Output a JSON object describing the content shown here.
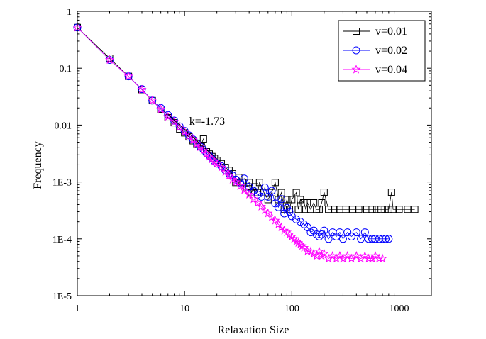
{
  "chart_data": {
    "type": "scatter",
    "title": "",
    "xlabel": "Relaxation Size",
    "ylabel": "Frequency",
    "x_scale": "log",
    "y_scale": "log",
    "xlim": [
      1,
      2000
    ],
    "ylim": [
      1e-05,
      1
    ],
    "x_ticks": [
      {
        "value": 1,
        "label": "1"
      },
      {
        "value": 10,
        "label": "10"
      },
      {
        "value": 100,
        "label": "100"
      },
      {
        "value": 1000,
        "label": "1000"
      }
    ],
    "y_ticks": [
      {
        "value": 1,
        "label": "1"
      },
      {
        "value": 0.1,
        "label": "0.1"
      },
      {
        "value": 0.01,
        "label": "0.01"
      },
      {
        "value": 0.001,
        "label": "1E-3"
      },
      {
        "value": 0.0001,
        "label": "1E-4"
      },
      {
        "value": 1e-05,
        "label": "1E-5"
      }
    ],
    "grid": false,
    "legend_position": "top-right",
    "annotation": {
      "text": "k=-1.73",
      "slope": -1.73,
      "x_start": 7,
      "x_end": 20,
      "y_start": 0.0155
    },
    "series": [
      {
        "name": "v=0.01",
        "marker": "square",
        "color": "#000000",
        "points": [
          [
            1,
            0.52
          ],
          [
            2,
            0.15
          ],
          [
            3,
            0.072
          ],
          [
            4,
            0.042
          ],
          [
            5,
            0.027
          ],
          [
            6,
            0.019
          ],
          [
            7,
            0.0135
          ],
          [
            8,
            0.011
          ],
          [
            9,
            0.0085
          ],
          [
            10,
            0.0073
          ],
          [
            11,
            0.0062
          ],
          [
            12,
            0.0053
          ],
          [
            13,
            0.0047
          ],
          [
            14,
            0.0042
          ],
          [
            15,
            0.0057
          ],
          [
            16,
            0.0034
          ],
          [
            17,
            0.0031
          ],
          [
            18,
            0.0028
          ],
          [
            19,
            0.0026
          ],
          [
            20,
            0.0024
          ],
          [
            22,
            0.0021
          ],
          [
            24,
            0.0018
          ],
          [
            26,
            0.0016
          ],
          [
            28,
            0.0014
          ],
          [
            30,
            0.00098
          ],
          [
            32,
            0.0012
          ],
          [
            35,
            0.00098
          ],
          [
            38,
            0.00082
          ],
          [
            40,
            0.00098
          ],
          [
            42,
            0.00065
          ],
          [
            45,
            0.00082
          ],
          [
            48,
            0.00065
          ],
          [
            50,
            0.00098
          ],
          [
            55,
            0.00065
          ],
          [
            60,
            0.00049
          ],
          [
            65,
            0.00065
          ],
          [
            70,
            0.00098
          ],
          [
            75,
            0.00049
          ],
          [
            80,
            0.00065
          ],
          [
            85,
            0.00033
          ],
          [
            90,
            0.00049
          ],
          [
            95,
            0.00033
          ],
          [
            100,
            0.00049
          ],
          [
            110,
            0.00065
          ],
          [
            115,
            0.00033
          ],
          [
            120,
            0.00049
          ],
          [
            130,
            0.00043
          ],
          [
            135,
            0.00033
          ],
          [
            140,
            0.00043
          ],
          [
            150,
            0.00033
          ],
          [
            160,
            0.00043
          ],
          [
            170,
            0.00033
          ],
          [
            180,
            0.00033
          ],
          [
            190,
            0.00043
          ],
          [
            200,
            0.00066
          ],
          [
            220,
            0.00033
          ],
          [
            250,
            0.00033
          ],
          [
            280,
            0.00033
          ],
          [
            320,
            0.00033
          ],
          [
            370,
            0.00033
          ],
          [
            420,
            0.00033
          ],
          [
            500,
            0.00033
          ],
          [
            560,
            0.00033
          ],
          [
            620,
            0.00033
          ],
          [
            680,
            0.00033
          ],
          [
            740,
            0.00033
          ],
          [
            800,
            0.00033
          ],
          [
            850,
            0.00066
          ],
          [
            880,
            0.00033
          ],
          [
            1000,
            0.00033
          ],
          [
            1200,
            0.00033
          ],
          [
            1400,
            0.00033
          ]
        ]
      },
      {
        "name": "v=0.02",
        "marker": "circle",
        "color": "#0000ff",
        "points": [
          [
            1,
            0.52
          ],
          [
            2,
            0.14
          ],
          [
            3,
            0.072
          ],
          [
            4,
            0.043
          ],
          [
            5,
            0.027
          ],
          [
            6,
            0.02
          ],
          [
            7,
            0.015
          ],
          [
            8,
            0.012
          ],
          [
            9,
            0.0095
          ],
          [
            10,
            0.0079
          ],
          [
            11,
            0.0066
          ],
          [
            12,
            0.0056
          ],
          [
            13,
            0.0048
          ],
          [
            14,
            0.0042
          ],
          [
            15,
            0.0037
          ],
          [
            16,
            0.0032
          ],
          [
            17,
            0.0029
          ],
          [
            18,
            0.0026
          ],
          [
            19,
            0.0023
          ],
          [
            20,
            0.0021
          ],
          [
            22,
            0.0019
          ],
          [
            24,
            0.0016
          ],
          [
            26,
            0.0014
          ],
          [
            28,
            0.0013
          ],
          [
            30,
            0.0011
          ],
          [
            33,
            0.00098
          ],
          [
            36,
            0.00115
          ],
          [
            40,
            0.00082
          ],
          [
            44,
            0.0007
          ],
          [
            48,
            0.0006
          ],
          [
            52,
            0.00055
          ],
          [
            56,
            0.0008
          ],
          [
            60,
            0.00055
          ],
          [
            65,
            0.0007
          ],
          [
            70,
            0.00042
          ],
          [
            75,
            0.00036
          ],
          [
            80,
            0.0005
          ],
          [
            85,
            0.00028
          ],
          [
            90,
            0.00035
          ],
          [
            95,
            0.0003
          ],
          [
            100,
            0.00025
          ],
          [
            110,
            0.00022
          ],
          [
            120,
            0.0002
          ],
          [
            130,
            0.00018
          ],
          [
            140,
            0.00016
          ],
          [
            150,
            0.00013
          ],
          [
            160,
            0.00014
          ],
          [
            170,
            0.00012
          ],
          [
            180,
            0.00011
          ],
          [
            190,
            0.00012
          ],
          [
            200,
            0.00014
          ],
          [
            220,
            0.0001
          ],
          [
            240,
            0.00013
          ],
          [
            260,
            0.00011
          ],
          [
            280,
            0.00013
          ],
          [
            300,
            0.0001
          ],
          [
            330,
            0.00013
          ],
          [
            360,
            0.00011
          ],
          [
            400,
            0.00013
          ],
          [
            440,
            0.0001
          ],
          [
            480,
            0.00013
          ],
          [
            520,
            0.0001
          ],
          [
            560,
            0.0001
          ],
          [
            600,
            0.0001
          ],
          [
            650,
            0.0001
          ],
          [
            700,
            0.0001
          ],
          [
            750,
            0.0001
          ],
          [
            800,
            0.0001
          ]
        ]
      },
      {
        "name": "v=0.04",
        "marker": "star",
        "color": "#ff00ff",
        "points": [
          [
            1,
            0.52
          ],
          [
            2,
            0.14
          ],
          [
            3,
            0.072
          ],
          [
            4,
            0.042
          ],
          [
            5,
            0.027
          ],
          [
            6,
            0.019
          ],
          [
            7,
            0.014
          ],
          [
            8,
            0.0115
          ],
          [
            9,
            0.0092
          ],
          [
            10,
            0.0077
          ],
          [
            11,
            0.0064
          ],
          [
            12,
            0.0055
          ],
          [
            13,
            0.0047
          ],
          [
            14,
            0.0041
          ],
          [
            15,
            0.0036
          ],
          [
            16,
            0.0031
          ],
          [
            17,
            0.0028
          ],
          [
            18,
            0.0025
          ],
          [
            19,
            0.0023
          ],
          [
            20,
            0.0021
          ],
          [
            22,
            0.0018
          ],
          [
            24,
            0.0015
          ],
          [
            26,
            0.0013
          ],
          [
            28,
            0.0011
          ],
          [
            30,
            0.001
          ],
          [
            33,
            0.00085
          ],
          [
            36,
            0.00072
          ],
          [
            40,
            0.0006
          ],
          [
            44,
            0.0005
          ],
          [
            48,
            0.00043
          ],
          [
            52,
            0.00037
          ],
          [
            56,
            0.00032
          ],
          [
            60,
            0.00028
          ],
          [
            65,
            0.00024
          ],
          [
            70,
            0.00021
          ],
          [
            75,
            0.00018
          ],
          [
            80,
            0.00016
          ],
          [
            85,
            0.00014
          ],
          [
            90,
            0.00013
          ],
          [
            95,
            0.00012
          ],
          [
            100,
            0.00011
          ],
          [
            105,
            0.0001
          ],
          [
            110,
            9e-05
          ],
          [
            115,
            8.5e-05
          ],
          [
            120,
            8e-05
          ],
          [
            125,
            7.5e-05
          ],
          [
            130,
            7e-05
          ],
          [
            140,
            6e-05
          ],
          [
            150,
            6e-05
          ],
          [
            160,
            5.5e-05
          ],
          [
            170,
            5e-05
          ],
          [
            180,
            6e-05
          ],
          [
            190,
            5e-05
          ],
          [
            200,
            5.5e-05
          ],
          [
            220,
            4.5e-05
          ],
          [
            240,
            5e-05
          ],
          [
            260,
            4.5e-05
          ],
          [
            280,
            5e-05
          ],
          [
            300,
            4.5e-05
          ],
          [
            330,
            5e-05
          ],
          [
            360,
            4.5e-05
          ],
          [
            400,
            5e-05
          ],
          [
            440,
            4.5e-05
          ],
          [
            480,
            5e-05
          ],
          [
            520,
            4.5e-05
          ],
          [
            560,
            4.5e-05
          ],
          [
            600,
            5e-05
          ],
          [
            650,
            4.5e-05
          ],
          [
            700,
            4.5e-05
          ]
        ]
      }
    ]
  }
}
